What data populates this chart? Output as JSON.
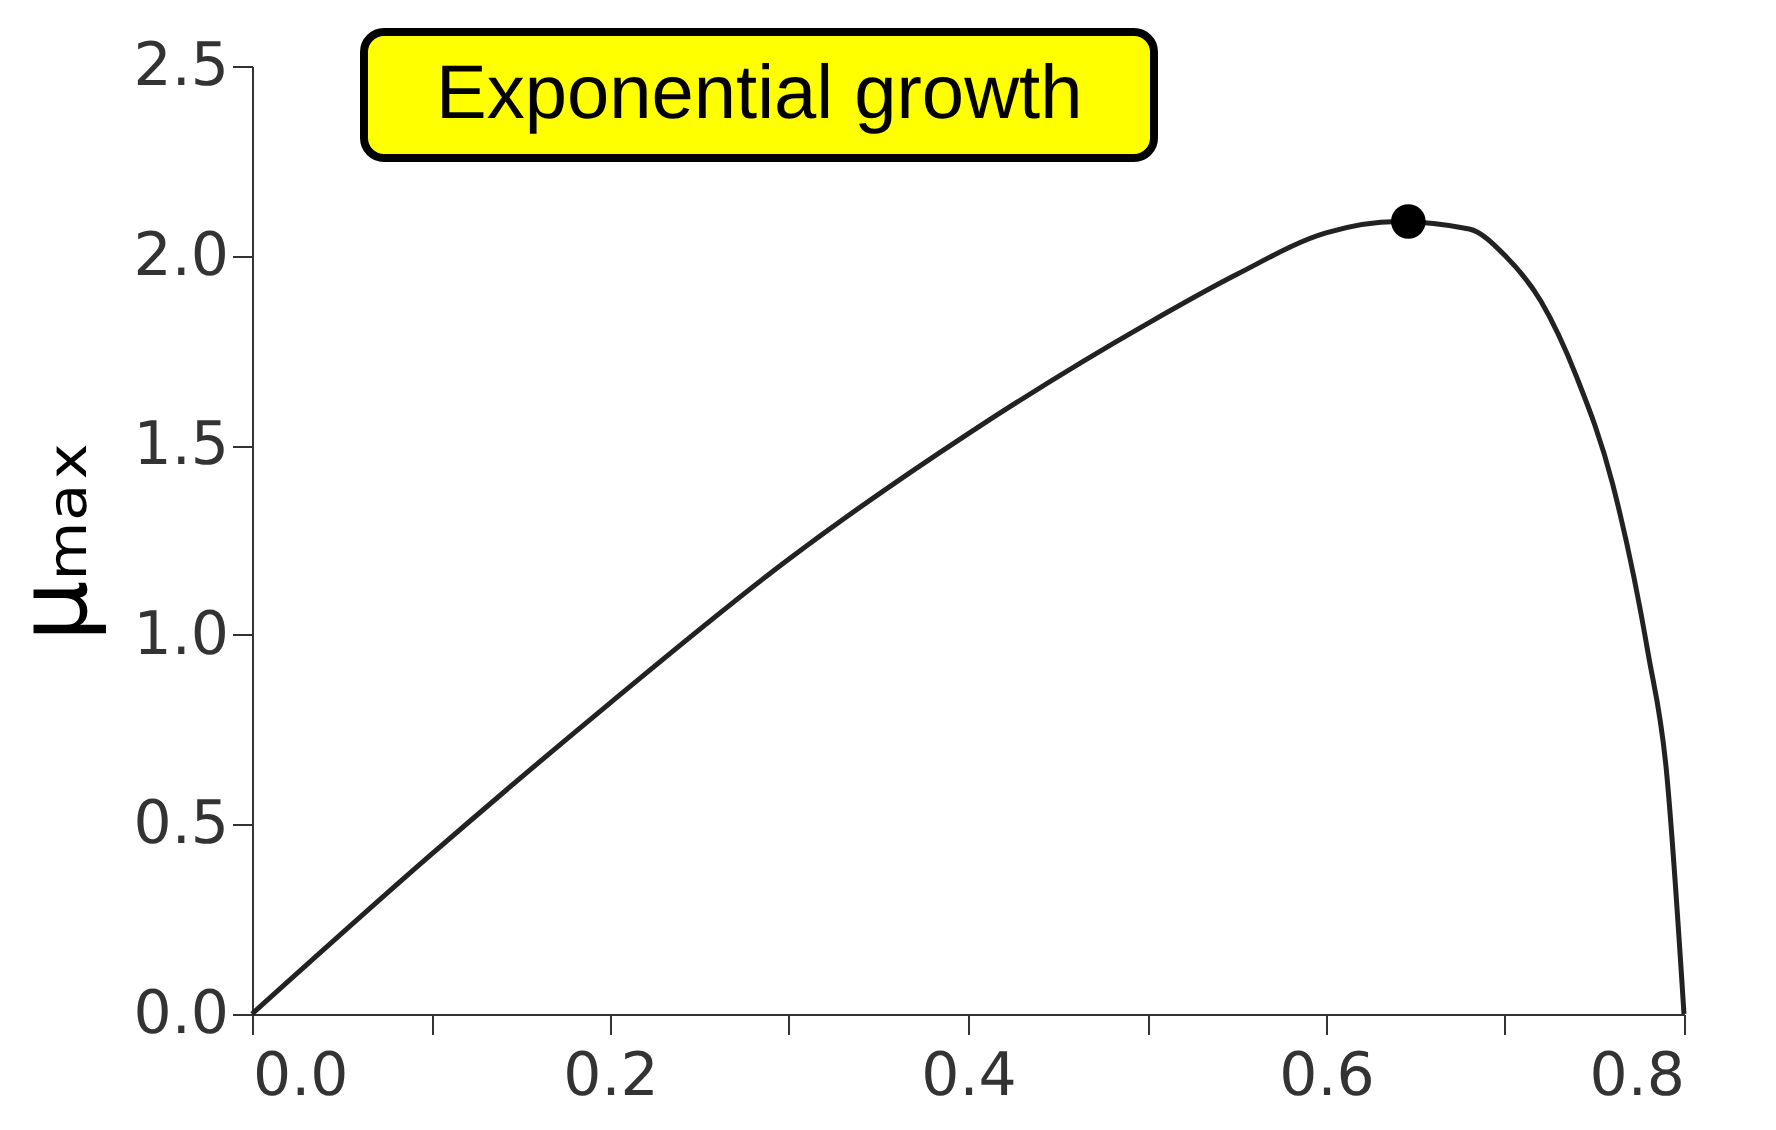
{
  "chart_data": {
    "type": "line",
    "ylabel": "μₘₐₓ",
    "annotations": [
      "Exponential growth"
    ],
    "xlim": [
      0,
      0.8
    ],
    "ylim": [
      0,
      2.5
    ],
    "xticks": [
      {
        "value": 0,
        "label": "0.0"
      },
      {
        "value": 0.1,
        "label": null
      },
      0.2,
      {
        "value": 0.3,
        "label": null
      },
      0.4,
      {
        "value": 0.5,
        "label": null
      },
      0.6,
      {
        "value": 0.7,
        "label": null
      },
      0.8
    ],
    "yticks": [
      {
        "value": 0,
        "label": "0.0"
      },
      0.5,
      {
        "value": 1,
        "label": "1.0"
      },
      1.5,
      {
        "value": 2,
        "label": "2.0"
      },
      2.5
    ],
    "grid": false,
    "series": [
      {
        "color": "#222222",
        "marker": "none",
        "line_style": "solid",
        "x": [
          0,
          0.1,
          0.2,
          0.3,
          0.4,
          0.5,
          0.55,
          0.6,
          0.64,
          0.68,
          0.7,
          0.72,
          0.74,
          0.76,
          0.78,
          0.79,
          0.8
        ],
        "values": [
          0,
          0.42,
          0.82,
          1.2,
          1.53,
          1.82,
          1.95,
          2.06,
          2.09,
          2.07,
          2.0,
          1.88,
          1.68,
          1.4,
          0.95,
          0.65,
          0
        ]
      },
      {
        "type": "scatter",
        "color": "#000000",
        "marker": "circle",
        "x": [
          0.646
        ],
        "values": [
          2.09
        ]
      }
    ]
  }
}
